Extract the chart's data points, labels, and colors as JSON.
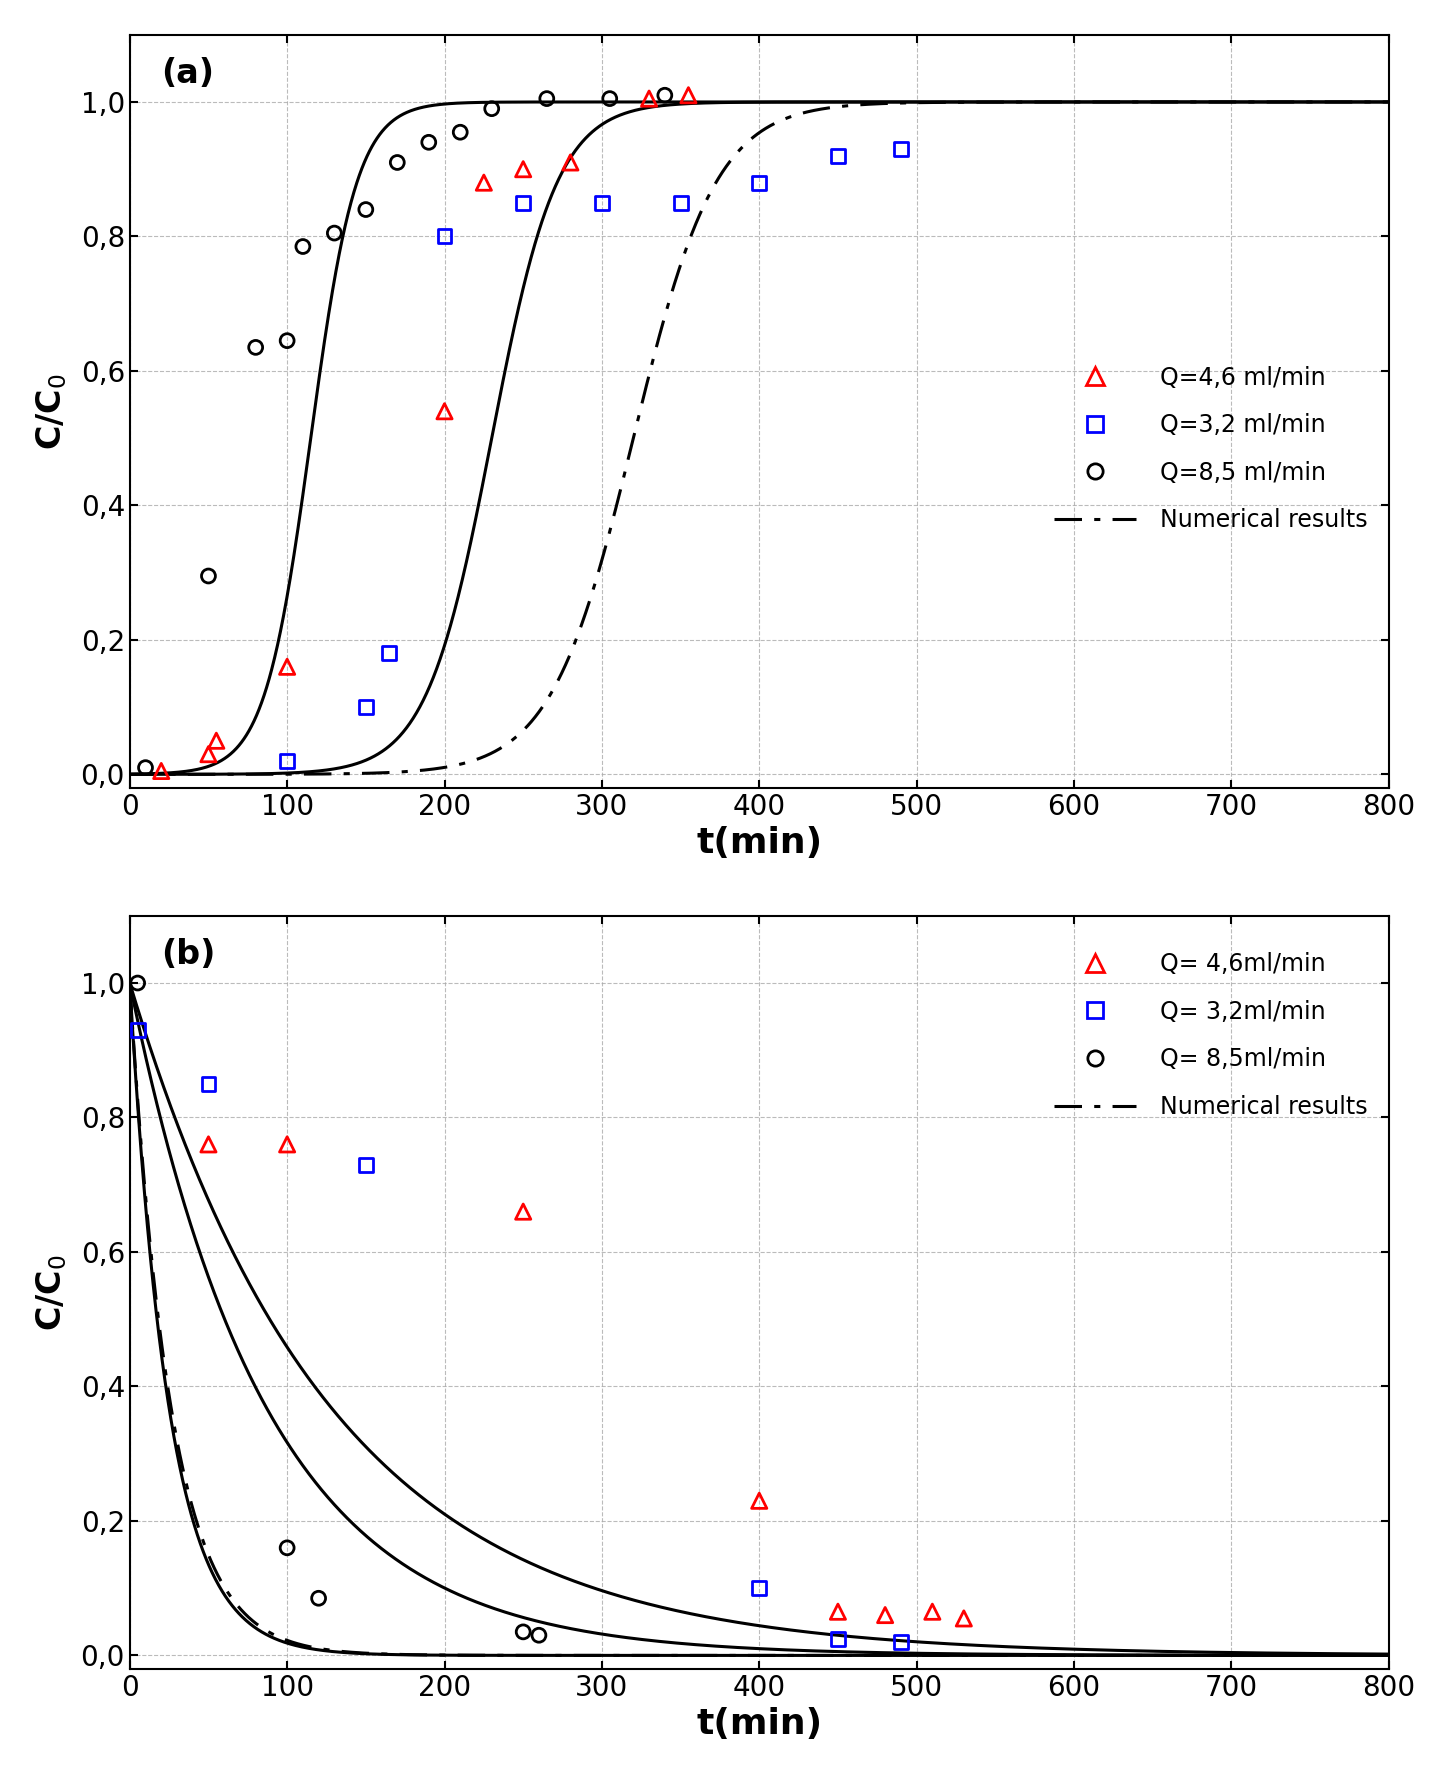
{
  "panel_a": {
    "label": "(a)",
    "xlabel": "t(min)",
    "ylabel": "C/C$_0$",
    "xlim": [
      0,
      800
    ],
    "ylim": [
      -0.02,
      1.1
    ],
    "xticks": [
      0,
      100,
      200,
      300,
      400,
      500,
      600,
      700,
      800
    ],
    "yticks": [
      0.0,
      0.2,
      0.4,
      0.6,
      0.8,
      1.0
    ],
    "ytick_labels": [
      "0,0",
      "0,2",
      "0,4",
      "0,6",
      "0,8",
      "1,0"
    ],
    "data_red": {
      "x": [
        20,
        50,
        55,
        100,
        200,
        225,
        250,
        280,
        330,
        355
      ],
      "y": [
        0.005,
        0.03,
        0.05,
        0.16,
        0.54,
        0.88,
        0.9,
        0.91,
        1.005,
        1.01
      ]
    },
    "data_blue": {
      "x": [
        100,
        150,
        165,
        200,
        250,
        300,
        350,
        400,
        450,
        490
      ],
      "y": [
        0.02,
        0.1,
        0.18,
        0.8,
        0.85,
        0.85,
        0.85,
        0.88,
        0.92,
        0.93
      ]
    },
    "data_black": {
      "x": [
        10,
        50,
        80,
        100,
        110,
        130,
        150,
        170,
        190,
        210,
        230,
        265,
        305,
        340
      ],
      "y": [
        0.01,
        0.295,
        0.635,
        0.645,
        0.785,
        0.805,
        0.84,
        0.91,
        0.94,
        0.955,
        0.99,
        1.005,
        1.005,
        1.01
      ]
    },
    "curve_8p5": {
      "t0": 115,
      "k": 0.068
    },
    "curve_4p6": {
      "t0": 230,
      "k": 0.048
    },
    "curve_3p2_dashed": {
      "t0": 320,
      "k": 0.038
    }
  },
  "panel_b": {
    "label": "(b)",
    "xlabel": "t(min)",
    "ylabel": "C/C$_0$",
    "xlim": [
      0,
      800
    ],
    "ylim": [
      -0.02,
      1.1
    ],
    "xticks": [
      0,
      100,
      200,
      300,
      400,
      500,
      600,
      700,
      800
    ],
    "yticks": [
      0.0,
      0.2,
      0.4,
      0.6,
      0.8,
      1.0
    ],
    "ytick_labels": [
      "0,0",
      "0,2",
      "0,4",
      "0,6",
      "0,8",
      "1,0"
    ],
    "data_red": {
      "x": [
        50,
        100,
        250,
        400,
        450,
        480,
        510,
        530
      ],
      "y": [
        0.76,
        0.76,
        0.66,
        0.23,
        0.065,
        0.06,
        0.065,
        0.055
      ]
    },
    "data_blue": {
      "x": [
        5,
        50,
        150,
        400,
        450,
        490
      ],
      "y": [
        0.93,
        0.85,
        0.73,
        0.1,
        0.025,
        0.02
      ]
    },
    "data_black": {
      "x": [
        5,
        100,
        120,
        250,
        260
      ],
      "y": [
        1.0,
        0.16,
        0.085,
        0.035,
        0.03
      ]
    },
    "curve_8p5": {
      "k": 0.04
    },
    "curve_4p6": {
      "k": 0.0115
    },
    "curve_3p2": {
      "k": 0.0078
    },
    "curve_dashed": {
      "k": 0.038
    }
  },
  "legend_a": {
    "entries": [
      "Q=4,6 ml/min",
      "Q=3,2 ml/min",
      "Q=8,5 ml/min",
      "Numerical results"
    ]
  },
  "legend_b": {
    "entries": [
      "Q= 4,6ml/min",
      "Q= 3,2ml/min",
      "Q= 8,5ml/min",
      "Numerical results"
    ]
  },
  "colors": {
    "red": "#FF0000",
    "blue": "#0000FF",
    "black": "#000000"
  },
  "figsize": [
    14.5,
    17.76
  ],
  "dpi": 100
}
